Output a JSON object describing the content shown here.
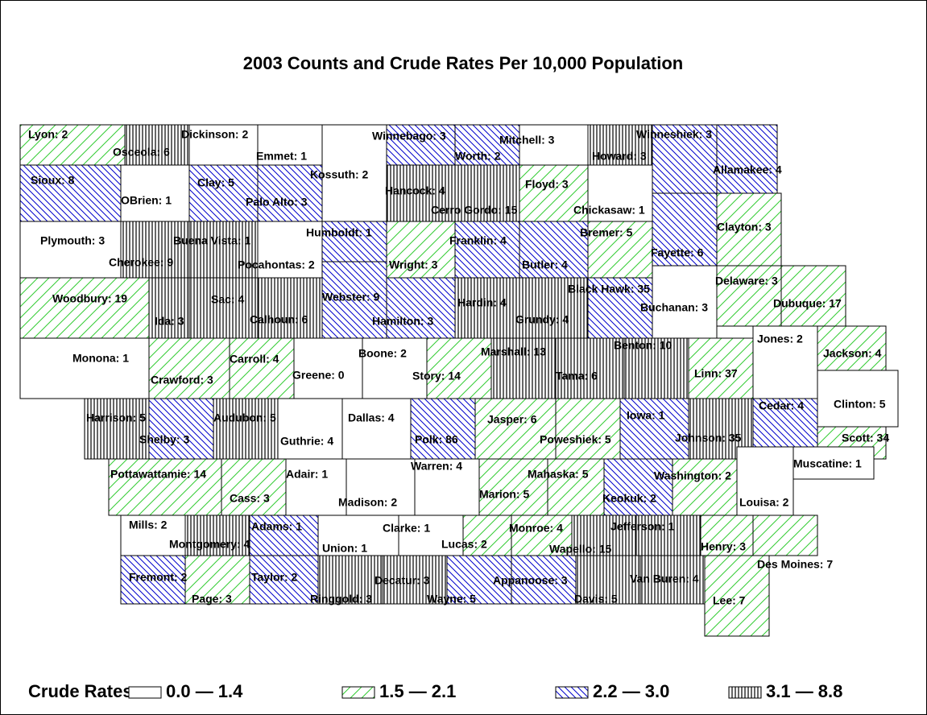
{
  "subtitle": "2003 Counts and Crude Rates Per 10,000 Population",
  "counties": [
    {
      "label": "Lyon: 2",
      "class": 1
    },
    {
      "label": "Osceola: 6",
      "class": 3
    },
    {
      "label": "Dickinson: 2",
      "class": 0
    },
    {
      "label": "Emmet: 1",
      "class": 0
    },
    {
      "label": "Kossuth: 2",
      "class": 0
    },
    {
      "label": "Winnebago: 3",
      "class": 2
    },
    {
      "label": "Worth: 2",
      "class": 2
    },
    {
      "label": "Mitchell: 3",
      "class": 0
    },
    {
      "label": "Howard: 3",
      "class": 3
    },
    {
      "label": "Winneshiek: 3",
      "class": 2
    },
    {
      "label": "Allamakee: 4",
      "class": 2
    },
    {
      "label": "Sioux: 8",
      "class": 2
    },
    {
      "label": "OBrien: 1",
      "class": 0
    },
    {
      "label": "Clay: 5",
      "class": 2
    },
    {
      "label": "Palo Alto: 3",
      "class": 2
    },
    {
      "label": "Hancock: 4",
      "class": 3
    },
    {
      "label": "Cerro Gordo: 15",
      "class": 3
    },
    {
      "label": "Floyd: 3",
      "class": 1
    },
    {
      "label": "Chickasaw: 1",
      "class": 0
    },
    {
      "label": "Fayette: 6",
      "class": 2
    },
    {
      "label": "Clayton: 3",
      "class": 1
    },
    {
      "label": "Plymouth: 3",
      "class": 0
    },
    {
      "label": "Cherokee: 9",
      "class": 3
    },
    {
      "label": "Buena Vista: 1",
      "class": 3
    },
    {
      "label": "Pocahontas: 2",
      "class": 0
    },
    {
      "label": "Humboldt: 1",
      "class": 2
    },
    {
      "label": "Wright: 3",
      "class": 1
    },
    {
      "label": "Franklin: 4",
      "class": 2
    },
    {
      "label": "Butler: 4",
      "class": 2
    },
    {
      "label": "Bremer: 5",
      "class": 1
    },
    {
      "label": "Woodbury: 19",
      "class": 1
    },
    {
      "label": "Ida: 3",
      "class": 3
    },
    {
      "label": "Sac: 4",
      "class": 3
    },
    {
      "label": "Calhoun: 6",
      "class": 3
    },
    {
      "label": "Webster: 9",
      "class": 2
    },
    {
      "label": "Hamilton: 3",
      "class": 2
    },
    {
      "label": "Hardin: 4",
      "class": 3
    },
    {
      "label": "Grundy: 4",
      "class": 3
    },
    {
      "label": "Black Hawk: 35",
      "class": 2
    },
    {
      "label": "Buchanan: 3",
      "class": 0
    },
    {
      "label": "Delaware: 3",
      "class": 1
    },
    {
      "label": "Dubuque: 17",
      "class": 1
    },
    {
      "label": "Monona: 1",
      "class": 0
    },
    {
      "label": "Crawford: 3",
      "class": 1
    },
    {
      "label": "Carroll: 4",
      "class": 1
    },
    {
      "label": "Greene: 0",
      "class": 0
    },
    {
      "label": "Boone: 2",
      "class": 0
    },
    {
      "label": "Story: 14",
      "class": 1
    },
    {
      "label": "Marshall: 13",
      "class": 3
    },
    {
      "label": "Tama: 6",
      "class": 3
    },
    {
      "label": "Benton: 10",
      "class": 3
    },
    {
      "label": "Linn: 37",
      "class": 1
    },
    {
      "label": "Jones: 2",
      "class": 0
    },
    {
      "label": "Jackson: 4",
      "class": 1
    },
    {
      "label": "Harrison: 5",
      "class": 3
    },
    {
      "label": "Shelby: 3",
      "class": 2
    },
    {
      "label": "Audubon: 5",
      "class": 3
    },
    {
      "label": "Guthrie: 4",
      "class": 0
    },
    {
      "label": "Dallas: 4",
      "class": 0
    },
    {
      "label": "Polk: 86",
      "class": 2
    },
    {
      "label": "Jasper: 6",
      "class": 1
    },
    {
      "label": "Poweshiek: 5",
      "class": 1
    },
    {
      "label": "Iowa: 1",
      "class": 2
    },
    {
      "label": "Johnson: 35",
      "class": 3
    },
    {
      "label": "Cedar: 4",
      "class": 2
    },
    {
      "label": "Clinton: 5",
      "class": 0
    },
    {
      "label": "Scott: 34",
      "class": 1
    },
    {
      "label": "Pottawattamie: 14",
      "class": 1
    },
    {
      "label": "Cass: 3",
      "class": 1
    },
    {
      "label": "Adair: 1",
      "class": 0
    },
    {
      "label": "Madison: 2",
      "class": 0
    },
    {
      "label": "Warren: 4",
      "class": 0
    },
    {
      "label": "Marion: 5",
      "class": 1
    },
    {
      "label": "Mahaska: 5",
      "class": 1
    },
    {
      "label": "Keokuk: 2",
      "class": 2
    },
    {
      "label": "Washington: 2",
      "class": 1
    },
    {
      "label": "Louisa: 2",
      "class": 0
    },
    {
      "label": "Muscatine: 1",
      "class": 0
    },
    {
      "label": "Mills: 2",
      "class": 0
    },
    {
      "label": "Montgomery: 4",
      "class": 3
    },
    {
      "label": "Adams: 1",
      "class": 2
    },
    {
      "label": "Union: 1",
      "class": 0
    },
    {
      "label": "Clarke: 1",
      "class": 0
    },
    {
      "label": "Lucas: 2",
      "class": 1
    },
    {
      "label": "Monroe: 4",
      "class": 1
    },
    {
      "label": "Wapello: 15",
      "class": 3
    },
    {
      "label": "Jefferson: 1",
      "class": 3
    },
    {
      "label": "Henry: 3",
      "class": 1
    },
    {
      "label": "Fremont: 2",
      "class": 2
    },
    {
      "label": "Page: 3",
      "class": 1
    },
    {
      "label": "Taylor: 2",
      "class": 2
    },
    {
      "label": "Ringgold: 3",
      "class": 3
    },
    {
      "label": "Decatur: 3",
      "class": 3
    },
    {
      "label": "Wayne: 5",
      "class": 2
    },
    {
      "label": "Appanoose: 3",
      "class": 2
    },
    {
      "label": "Davis: 5",
      "class": 3
    },
    {
      "label": "Van Buren: 4",
      "class": 3
    },
    {
      "label": "Lee: 7",
      "class": 1
    },
    {
      "label": "Des Moines: 7",
      "class": 1
    }
  ],
  "legend": {
    "title": "Crude Rates",
    "classes": [
      "0.0 — 1.4",
      "1.5 — 2.1",
      "2.2 — 3.0",
      "3.1 — 8.8"
    ]
  }
}
